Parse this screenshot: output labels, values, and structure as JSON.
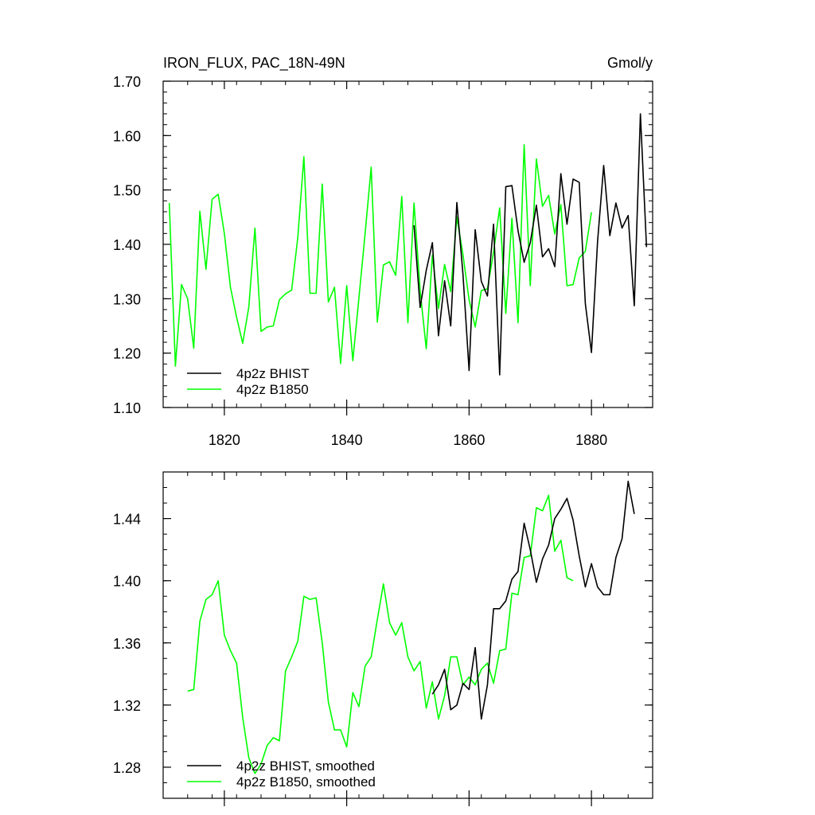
{
  "chart_data": [
    {
      "type": "line",
      "title_left": "IRON_FLUX, PAC_18N-49N",
      "title_right": "Gmol/y",
      "xlim": [
        1810,
        1890
      ],
      "ylim": [
        1.1,
        1.7
      ],
      "x_ticks": [
        1820,
        1840,
        1860,
        1880
      ],
      "y_ticks": [
        "1.10",
        "1.20",
        "1.30",
        "1.40",
        "1.50",
        "1.60",
        "1.70"
      ],
      "series": [
        {
          "name": "4p2z BHIST",
          "color": "#000000",
          "x_start": 1851,
          "values": [
            1.435,
            1.284,
            1.352,
            1.403,
            1.232,
            1.333,
            1.25,
            1.477,
            1.345,
            1.168,
            1.427,
            1.332,
            1.305,
            1.437,
            1.16,
            1.506,
            1.508,
            1.425,
            1.367,
            1.403,
            1.472,
            1.377,
            1.392,
            1.359,
            1.53,
            1.437,
            1.52,
            1.514,
            1.291,
            1.201,
            1.405,
            1.545,
            1.416,
            1.476,
            1.43,
            1.453,
            1.287,
            1.64,
            1.395
          ]
        },
        {
          "name": "4p2z B1850",
          "color": "#00ff00",
          "x_start": 1811,
          "values": [
            1.476,
            1.176,
            1.326,
            1.3,
            1.209,
            1.461,
            1.354,
            1.483,
            1.492,
            1.42,
            1.321,
            1.266,
            1.218,
            1.285,
            1.43,
            1.24,
            1.248,
            1.25,
            1.298,
            1.309,
            1.316,
            1.412,
            1.561,
            1.31,
            1.31,
            1.511,
            1.294,
            1.321,
            1.181,
            1.324,
            1.186,
            1.302,
            1.419,
            1.542,
            1.257,
            1.362,
            1.368,
            1.343,
            1.488,
            1.256,
            1.476,
            1.315,
            1.208,
            1.38,
            1.282,
            1.363,
            1.313,
            1.45,
            1.381,
            1.298,
            1.248,
            1.315,
            1.318,
            1.386,
            1.467,
            1.273,
            1.448,
            1.256,
            1.583,
            1.324,
            1.557,
            1.47,
            1.49,
            1.419,
            1.473,
            1.324,
            1.326,
            1.375,
            1.387,
            1.459
          ]
        }
      ],
      "legend": "bottom-left",
      "grid": false
    },
    {
      "type": "line",
      "xlim": [
        1810,
        1890
      ],
      "ylim": [
        1.26,
        1.47
      ],
      "x_ticks": [
        1820,
        1840,
        1860,
        1880
      ],
      "y_ticks": [
        "1.28",
        "1.32",
        "1.36",
        "1.40",
        "1.44"
      ],
      "series": [
        {
          "name": "4p2z BHIST, smoothed",
          "color": "#000000",
          "x_start": 1854,
          "values": [
            1.327,
            1.333,
            1.343,
            1.317,
            1.32,
            1.334,
            1.33,
            1.357,
            1.311,
            1.333,
            1.382,
            1.382,
            1.387,
            1.401,
            1.406,
            1.437,
            1.42,
            1.399,
            1.414,
            1.423,
            1.44,
            1.446,
            1.453,
            1.439,
            1.416,
            1.396,
            1.411,
            1.396,
            1.391,
            1.391,
            1.415,
            1.427,
            1.464,
            1.443
          ]
        },
        {
          "name": "4p2z B1850, smoothed",
          "color": "#00ff00",
          "x_start": 1814,
          "values": [
            1.329,
            1.33,
            1.374,
            1.388,
            1.391,
            1.4,
            1.365,
            1.355,
            1.347,
            1.312,
            1.286,
            1.276,
            1.282,
            1.294,
            1.299,
            1.297,
            1.342,
            1.351,
            1.361,
            1.39,
            1.388,
            1.389,
            1.36,
            1.322,
            1.304,
            1.304,
            1.293,
            1.328,
            1.319,
            1.345,
            1.351,
            1.375,
            1.398,
            1.373,
            1.365,
            1.373,
            1.351,
            1.342,
            1.348,
            1.318,
            1.335,
            1.311,
            1.326,
            1.351,
            1.351,
            1.333,
            1.338,
            1.333,
            1.343,
            1.347,
            1.334,
            1.355,
            1.356,
            1.392,
            1.391,
            1.415,
            1.416,
            1.447,
            1.445,
            1.455,
            1.419,
            1.426,
            1.402,
            1.4
          ]
        }
      ],
      "legend": "bottom-left",
      "grid": false
    }
  ]
}
